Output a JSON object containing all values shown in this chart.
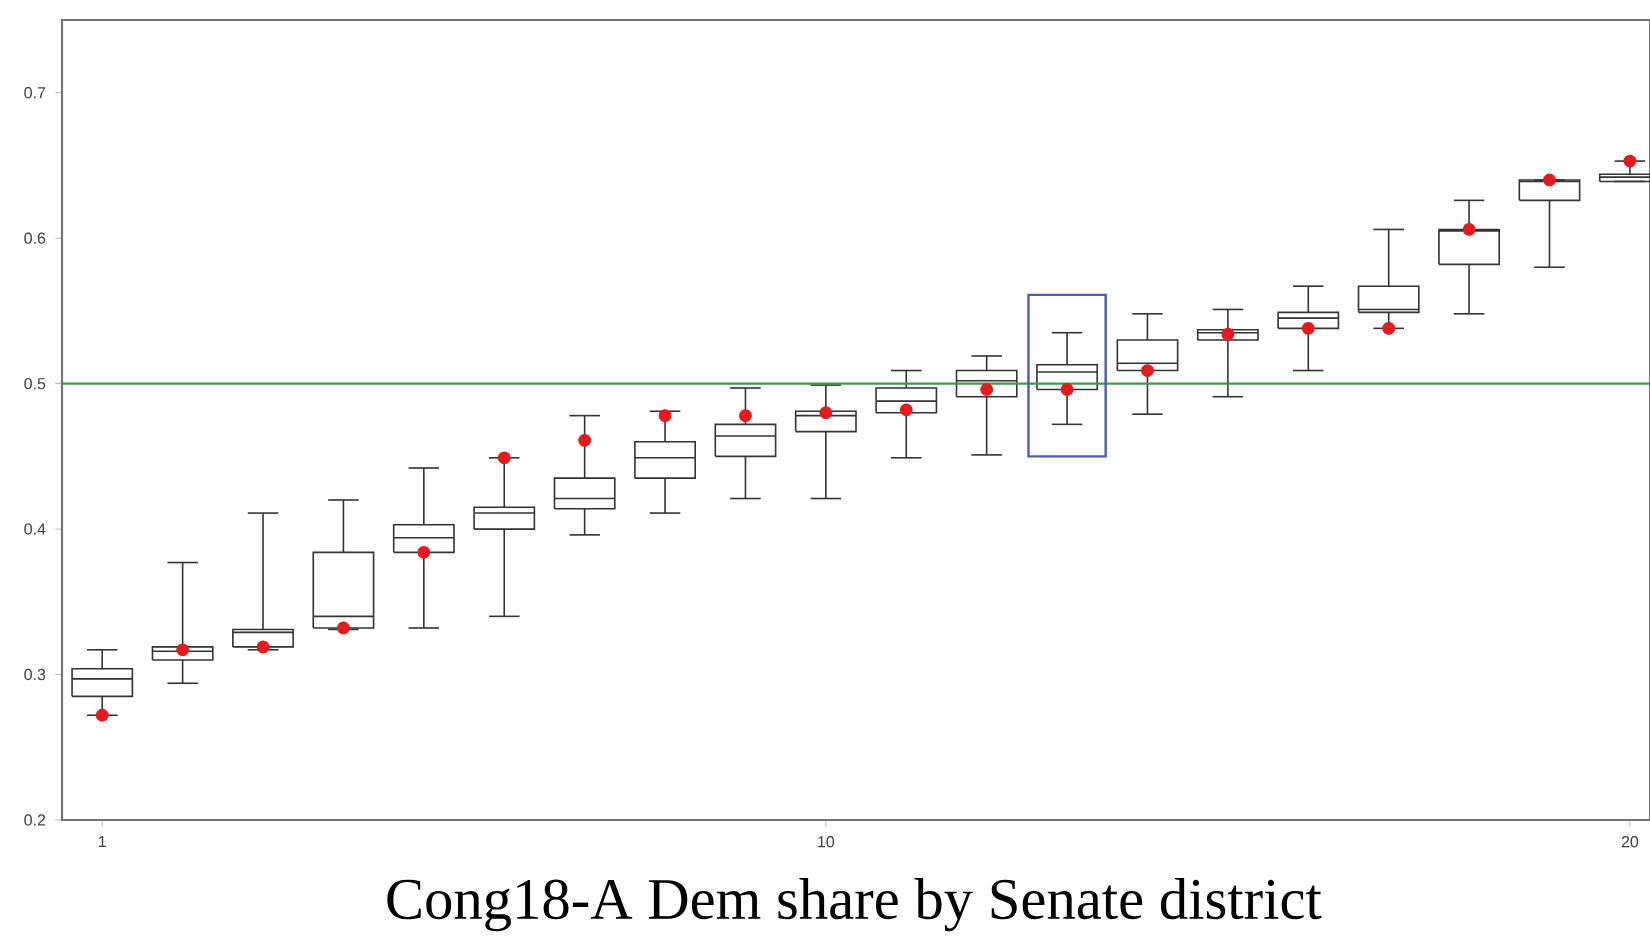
{
  "chart_data": {
    "type": "box",
    "title": "Cong18-A Dem share by Senate district",
    "color": "#333333",
    "categories": [
      "1",
      null,
      null,
      null,
      null,
      null,
      null,
      null,
      null,
      "10",
      null,
      null,
      null,
      null,
      null,
      null,
      null,
      null,
      null,
      "20"
    ],
    "boxes": [
      {
        "low": 0.272,
        "q1": 0.285,
        "median": 0.297,
        "q3": 0.304,
        "high": 0.317
      },
      {
        "low": 0.294,
        "q1": 0.31,
        "median": 0.316,
        "q3": 0.319,
        "high": 0.377
      },
      {
        "low": 0.317,
        "q1": 0.319,
        "median": 0.329,
        "q3": 0.331,
        "high": 0.411
      },
      {
        "low": 0.331,
        "q1": 0.332,
        "median": 0.34,
        "q3": 0.384,
        "high": 0.42
      },
      {
        "low": 0.332,
        "q1": 0.384,
        "median": 0.394,
        "q3": 0.403,
        "high": 0.442
      },
      {
        "low": 0.34,
        "q1": 0.4,
        "median": 0.411,
        "q3": 0.415,
        "high": 0.449
      },
      {
        "low": 0.396,
        "q1": 0.414,
        "median": 0.421,
        "q3": 0.435,
        "high": 0.478
      },
      {
        "low": 0.411,
        "q1": 0.435,
        "median": 0.449,
        "q3": 0.46,
        "high": 0.481
      },
      {
        "low": 0.421,
        "q1": 0.45,
        "median": 0.464,
        "q3": 0.472,
        "high": 0.497
      },
      {
        "low": 0.421,
        "q1": 0.467,
        "median": 0.478,
        "q3": 0.481,
        "high": 0.499
      },
      {
        "low": 0.449,
        "q1": 0.48,
        "median": 0.488,
        "q3": 0.497,
        "high": 0.509
      },
      {
        "low": 0.451,
        "q1": 0.491,
        "median": 0.502,
        "q3": 0.509,
        "high": 0.519
      },
      {
        "low": 0.472,
        "q1": 0.496,
        "median": 0.508,
        "q3": 0.513,
        "high": 0.535
      },
      {
        "low": 0.479,
        "q1": 0.509,
        "median": 0.514,
        "q3": 0.53,
        "high": 0.548
      },
      {
        "low": 0.491,
        "q1": 0.53,
        "median": 0.535,
        "q3": 0.537,
        "high": 0.551
      },
      {
        "low": 0.509,
        "q1": 0.538,
        "median": 0.545,
        "q3": 0.549,
        "high": 0.567
      },
      {
        "low": 0.538,
        "q1": 0.549,
        "median": 0.551,
        "q3": 0.567,
        "high": 0.606
      },
      {
        "low": 0.548,
        "q1": 0.582,
        "median": 0.605,
        "q3": 0.606,
        "high": 0.626
      },
      {
        "low": 0.58,
        "q1": 0.626,
        "median": 0.639,
        "q3": 0.64,
        "high": 0.64
      },
      {
        "low": 0.639,
        "q1": 0.639,
        "median": 0.642,
        "q3": 0.644,
        "high": 0.653
      }
    ],
    "series": [
      {
        "type": "scatter",
        "color": "#e41a1c",
        "values": [
          0.272,
          0.317,
          0.319,
          0.332,
          0.384,
          0.449,
          0.461,
          0.478,
          0.478,
          0.48,
          0.482,
          0.496,
          0.496,
          0.509,
          0.534,
          0.538,
          0.538,
          0.606,
          0.64,
          0.653
        ]
      }
    ],
    "ref_lines": [
      {
        "axis": "y",
        "value": 0.5,
        "color": "#3c9c3c"
      }
    ],
    "ylim": [
      0.2,
      0.75
    ],
    "yticks": [
      0.2,
      0.3,
      0.4,
      0.5,
      0.6,
      0.7
    ]
  }
}
